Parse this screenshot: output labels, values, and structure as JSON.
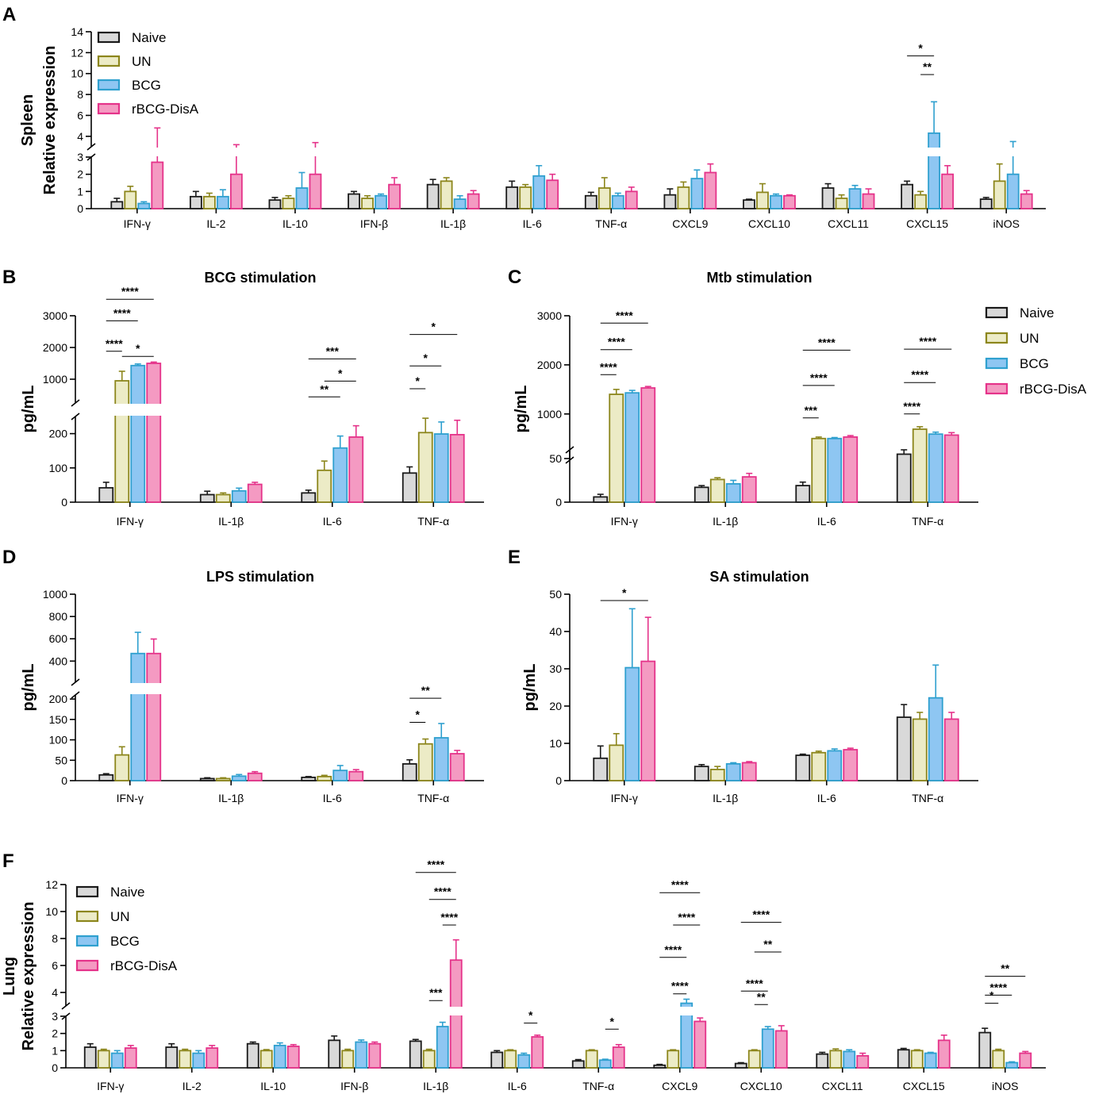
{
  "colors": {
    "Naive": {
      "fill": "#d9d9d9",
      "stroke": "#1a1a1a"
    },
    "UN": {
      "fill": "#ecebc6",
      "stroke": "#8c861c"
    },
    "BCG": {
      "fill": "#8ec6f2",
      "stroke": "#2fa0cf"
    },
    "rBCG-DisA": {
      "fill": "#f49ac2",
      "stroke": "#e5338a"
    }
  },
  "chart_data": [
    {
      "id": "A",
      "panel": "A",
      "type": "bar",
      "title": "",
      "ylabel": [
        "Spleen",
        "Relative expression"
      ],
      "series_names": [
        "Naive",
        "UN",
        "BCG",
        "rBCG-DisA"
      ],
      "categories": [
        "IFN-γ",
        "IL-2",
        "IL-10",
        "IFN-β",
        "IL-1β",
        "IL-6",
        "TNF-α",
        "CXCL9",
        "CXCL10",
        "CXCL11",
        "CXCL15",
        "iNOS"
      ],
      "y_segments": [
        {
          "range": [
            0,
            3
          ],
          "ticks": [
            0,
            1,
            2,
            3
          ]
        },
        {
          "range": [
            3,
            14
          ],
          "ticks": [
            4,
            6,
            8,
            10,
            12,
            14
          ]
        }
      ],
      "legend": "top-left",
      "values": [
        [
          0.4,
          1.0,
          0.3,
          2.7
        ],
        [
          0.7,
          0.7,
          0.7,
          2.0
        ],
        [
          0.5,
          0.6,
          1.2,
          2.0
        ],
        [
          0.85,
          0.6,
          0.75,
          1.4
        ],
        [
          1.4,
          1.6,
          0.55,
          0.85
        ],
        [
          1.25,
          1.25,
          1.9,
          1.65
        ],
        [
          0.75,
          1.2,
          0.75,
          1.0
        ],
        [
          0.8,
          1.25,
          1.75,
          2.1
        ],
        [
          0.5,
          0.95,
          0.75,
          0.75
        ],
        [
          1.2,
          0.6,
          1.15,
          0.85
        ],
        [
          1.4,
          0.8,
          4.3,
          2.0
        ],
        [
          0.55,
          1.6,
          2.0,
          0.85
        ]
      ],
      "errors": [
        [
          0.2,
          0.3,
          0.1,
          2.1
        ],
        [
          0.3,
          0.2,
          0.4,
          1.2
        ],
        [
          0.15,
          0.15,
          0.9,
          1.4
        ],
        [
          0.15,
          0.15,
          0.1,
          0.4
        ],
        [
          0.3,
          0.2,
          0.2,
          0.2
        ],
        [
          0.35,
          0.15,
          0.6,
          0.35
        ],
        [
          0.2,
          0.6,
          0.15,
          0.25
        ],
        [
          0.35,
          0.3,
          0.5,
          0.5
        ],
        [
          0.05,
          0.5,
          0.1,
          0.05
        ],
        [
          0.25,
          0.2,
          0.2,
          0.3
        ],
        [
          0.2,
          0.2,
          3.0,
          0.5
        ],
        [
          0.1,
          1.0,
          1.5,
          0.2
        ]
      ],
      "sig": [
        {
          "cat": 10,
          "from": 0,
          "to": 2,
          "label": "*",
          "y": 11.7
        },
        {
          "cat": 10,
          "from": 1,
          "to": 2,
          "label": "**",
          "y": 9.9
        }
      ]
    },
    {
      "id": "B",
      "panel": "B",
      "type": "bar",
      "title": "BCG stimulation",
      "ylabel": [
        "pg/mL"
      ],
      "series_names": [
        "Naive",
        "UN",
        "BCG",
        "rBCG-DisA"
      ],
      "categories": [
        "IFN-γ",
        "IL-1β",
        "IL-6",
        "TNF-α"
      ],
      "y_segments": [
        {
          "range": [
            0,
            250
          ],
          "ticks": [
            0,
            100,
            200
          ]
        },
        {
          "range": [
            250,
            3000
          ],
          "ticks": [
            1000,
            2000,
            3000
          ]
        }
      ],
      "legend": "none",
      "values": [
        [
          42,
          950,
          1430,
          1500
        ],
        [
          22,
          22,
          33,
          52
        ],
        [
          27,
          93,
          158,
          190
        ],
        [
          85,
          203,
          199,
          197
        ]
      ],
      "errors": [
        [
          16,
          300,
          50,
          40
        ],
        [
          10,
          5,
          8,
          6
        ],
        [
          8,
          27,
          35,
          33
        ],
        [
          18,
          42,
          35,
          42
        ]
      ],
      "sig": [
        {
          "cat": 0,
          "from": 0,
          "to": 3,
          "label": "****",
          "y": 3520
        },
        {
          "cat": 0,
          "from": 0,
          "to": 2,
          "label": "****",
          "y": 2840
        },
        {
          "cat": 0,
          "from": 0,
          "to": 1,
          "label": "****",
          "y": 1880
        },
        {
          "cat": 0,
          "from": 1,
          "to": 3,
          "label": "*",
          "y": 1720
        },
        {
          "cat": 2,
          "from": 0,
          "to": 3,
          "label": "***",
          "y": 1640
        },
        {
          "cat": 2,
          "from": 1,
          "to": 3,
          "label": "*",
          "y": 940
        },
        {
          "cat": 2,
          "from": 0,
          "to": 2,
          "label": "**",
          "y": 443
        },
        {
          "cat": 3,
          "from": 0,
          "to": 3,
          "label": "*",
          "y": 2410
        },
        {
          "cat": 3,
          "from": 0,
          "to": 2,
          "label": "*",
          "y": 1420
        },
        {
          "cat": 3,
          "from": 0,
          "to": 1,
          "label": "*",
          "y": 700
        }
      ]
    },
    {
      "id": "C",
      "panel": "C",
      "type": "bar",
      "title": "Mtb stimulation",
      "ylabel": [
        "pg/mL"
      ],
      "series_names": [
        "Naive",
        "UN",
        "BCG",
        "rBCG-DisA"
      ],
      "categories": [
        "IFN-γ",
        "IL-1β",
        "IL-6",
        "TNF-α"
      ],
      "y_segments": [
        {
          "range": [
            0,
            60
          ],
          "ticks": [
            0,
            50
          ]
        },
        {
          "range": [
            60,
            3000
          ],
          "ticks": [
            1000,
            2000,
            3000
          ]
        }
      ],
      "legend": "right",
      "values": [
        [
          6,
          1400,
          1430,
          1530
        ],
        [
          17,
          26,
          21,
          29
        ],
        [
          19,
          500,
          500,
          530
        ],
        [
          55,
          690,
          590,
          570
        ]
      ],
      "errors": [
        [
          3,
          100,
          50,
          30
        ],
        [
          2,
          2,
          4,
          4
        ],
        [
          4,
          30,
          20,
          30
        ],
        [
          5,
          50,
          40,
          50
        ]
      ],
      "sig": [
        {
          "cat": 0,
          "from": 0,
          "to": 3,
          "label": "****",
          "y": 2850
        },
        {
          "cat": 0,
          "from": 0,
          "to": 2,
          "label": "****",
          "y": 2310
        },
        {
          "cat": 0,
          "from": 0,
          "to": 1,
          "label": "****",
          "y": 1800
        },
        {
          "cat": 2,
          "from": 0,
          "to": 3,
          "label": "****",
          "y": 2300
        },
        {
          "cat": 2,
          "from": 0,
          "to": 2,
          "label": "****",
          "y": 1580
        },
        {
          "cat": 2,
          "from": 0,
          "to": 1,
          "label": "***",
          "y": 920
        },
        {
          "cat": 3,
          "from": 0,
          "to": 3,
          "label": "****",
          "y": 2320
        },
        {
          "cat": 3,
          "from": 0,
          "to": 2,
          "label": "****",
          "y": 1640
        },
        {
          "cat": 3,
          "from": 0,
          "to": 1,
          "label": "****",
          "y": 1000
        }
      ]
    },
    {
      "id": "D",
      "panel": "D",
      "type": "bar",
      "title": "LPS stimulation",
      "ylabel": [
        "pg/mL"
      ],
      "series_names": [
        "Naive",
        "UN",
        "BCG",
        "rBCG-DisA"
      ],
      "categories": [
        "IFN-γ",
        "IL-1β",
        "IL-6",
        "TNF-α"
      ],
      "y_segments": [
        {
          "range": [
            0,
            210
          ],
          "ticks": [
            0,
            50,
            100,
            150,
            200
          ]
        },
        {
          "range": [
            210,
            1000
          ],
          "ticks": [
            400,
            600,
            800,
            1000
          ]
        }
      ],
      "legend": "none",
      "values": [
        [
          14,
          63,
          468,
          468
        ],
        [
          5,
          5,
          11,
          18
        ],
        [
          8,
          10,
          25,
          22
        ],
        [
          41,
          90,
          105,
          66
        ]
      ],
      "errors": [
        [
          3,
          20,
          190,
          130
        ],
        [
          2,
          2,
          4,
          4
        ],
        [
          2,
          3,
          12,
          5
        ],
        [
          10,
          12,
          35,
          8
        ]
      ],
      "sig": [
        {
          "cat": 3,
          "from": 0,
          "to": 2,
          "label": "**",
          "y": 202
        },
        {
          "cat": 3,
          "from": 0,
          "to": 1,
          "label": "*",
          "y": 143
        }
      ]
    },
    {
      "id": "E",
      "panel": "E",
      "type": "bar",
      "title": "SA stimulation",
      "ylabel": [
        "pg/mL"
      ],
      "series_names": [
        "Naive",
        "UN",
        "BCG",
        "rBCG-DisA"
      ],
      "categories": [
        "IFN-γ",
        "IL-1β",
        "IL-6",
        "TNF-α"
      ],
      "y_segments": [
        {
          "range": [
            0,
            50
          ],
          "ticks": [
            0,
            10,
            20,
            30,
            40,
            50
          ]
        }
      ],
      "legend": "none",
      "values": [
        [
          6,
          9.5,
          30.3,
          32
        ],
        [
          3.8,
          3,
          4.5,
          4.8
        ],
        [
          6.8,
          7.5,
          8,
          8.3
        ],
        [
          17,
          16.5,
          22.2,
          16.5
        ]
      ],
      "errors": [
        [
          3.3,
          3.1,
          15.8,
          11.8
        ],
        [
          0.5,
          0.8,
          0.3,
          0.3
        ],
        [
          0.3,
          0.4,
          0.5,
          0.4
        ],
        [
          3.4,
          1.8,
          8.8,
          1.8
        ]
      ],
      "sig": [
        {
          "cat": 0,
          "from": 0,
          "to": 3,
          "label": "*",
          "y": 48.3
        }
      ]
    },
    {
      "id": "F",
      "panel": "F",
      "type": "bar",
      "title": "",
      "ylabel": [
        "Lung",
        "Relative expression"
      ],
      "series_names": [
        "Naive",
        "UN",
        "BCG",
        "rBCG-DisA"
      ],
      "categories": [
        "IFN-γ",
        "IL-2",
        "IL-10",
        "IFN-β",
        "IL-1β",
        "IL-6",
        "TNF-α",
        "CXCL9",
        "CXCL10",
        "CXCL11",
        "CXCL15",
        "iNOS"
      ],
      "y_segments": [
        {
          "range": [
            0,
            3
          ],
          "ticks": [
            0,
            1,
            2,
            3
          ]
        },
        {
          "range": [
            3,
            12
          ],
          "ticks": [
            4,
            6,
            8,
            10,
            12
          ]
        }
      ],
      "legend": "top-left",
      "values": [
        [
          1.2,
          1.0,
          0.85,
          1.15
        ],
        [
          1.2,
          1.0,
          0.85,
          1.15
        ],
        [
          1.4,
          1.0,
          1.3,
          1.25
        ],
        [
          1.6,
          1.0,
          1.5,
          1.4
        ],
        [
          1.55,
          1.0,
          2.4,
          6.4
        ],
        [
          0.9,
          1.0,
          0.75,
          1.8
        ],
        [
          0.4,
          1.0,
          0.45,
          1.2
        ],
        [
          0.15,
          1.0,
          3.2,
          2.7
        ],
        [
          0.25,
          1.0,
          2.25,
          2.15
        ],
        [
          0.8,
          1.0,
          0.95,
          0.7
        ],
        [
          1.05,
          1.0,
          0.85,
          1.6
        ],
        [
          2.05,
          1.0,
          0.3,
          0.85
        ]
      ],
      "errors": [
        [
          0.2,
          0.08,
          0.15,
          0.15
        ],
        [
          0.2,
          0.08,
          0.15,
          0.15
        ],
        [
          0.1,
          0.06,
          0.15,
          0.1
        ],
        [
          0.25,
          0.08,
          0.12,
          0.1
        ],
        [
          0.1,
          0.08,
          0.25,
          1.5
        ],
        [
          0.1,
          0.05,
          0.1,
          0.1
        ],
        [
          0.08,
          0.05,
          0.05,
          0.15
        ],
        [
          0.05,
          0.05,
          0.3,
          0.2
        ],
        [
          0.05,
          0.05,
          0.15,
          0.3
        ],
        [
          0.1,
          0.1,
          0.1,
          0.15
        ],
        [
          0.08,
          0.05,
          0.05,
          0.3
        ],
        [
          0.25,
          0.08,
          0.05,
          0.1
        ]
      ],
      "sig": [
        {
          "cat": 4,
          "from": 0,
          "to": 3,
          "label": "****",
          "y": 12.9
        },
        {
          "cat": 4,
          "from": 1,
          "to": 3,
          "label": "****",
          "y": 10.9
        },
        {
          "cat": 4,
          "from": 2,
          "to": 3,
          "label": "****",
          "y": 9.0
        },
        {
          "cat": 4,
          "from": 1,
          "to": 2,
          "label": "***",
          "y": 3.4
        },
        {
          "cat": 5,
          "from": 2,
          "to": 3,
          "label": "*",
          "y": 2.6
        },
        {
          "cat": 6,
          "from": 2,
          "to": 3,
          "label": "*",
          "y": 2.25
        },
        {
          "cat": 7,
          "from": 0,
          "to": 3,
          "label": "****",
          "y": 11.4
        },
        {
          "cat": 7,
          "from": 1,
          "to": 3,
          "label": "****",
          "y": 9.0
        },
        {
          "cat": 7,
          "from": 0,
          "to": 2,
          "label": "****",
          "y": 6.6
        },
        {
          "cat": 7,
          "from": 1,
          "to": 2,
          "label": "****",
          "y": 3.9
        },
        {
          "cat": 8,
          "from": 0,
          "to": 3,
          "label": "****",
          "y": 9.2
        },
        {
          "cat": 8,
          "from": 1,
          "to": 3,
          "label": "**",
          "y": 7.0
        },
        {
          "cat": 8,
          "from": 0,
          "to": 2,
          "label": "****",
          "y": 4.1
        },
        {
          "cat": 8,
          "from": 1,
          "to": 2,
          "label": "**",
          "y": 3.1
        },
        {
          "cat": 11,
          "from": 0,
          "to": 3,
          "label": "**",
          "y": 5.2
        },
        {
          "cat": 11,
          "from": 0,
          "to": 2,
          "label": "****",
          "y": 3.8
        },
        {
          "cat": 11,
          "from": 0,
          "to": 1,
          "label": "*",
          "y": 3.2
        }
      ]
    }
  ]
}
